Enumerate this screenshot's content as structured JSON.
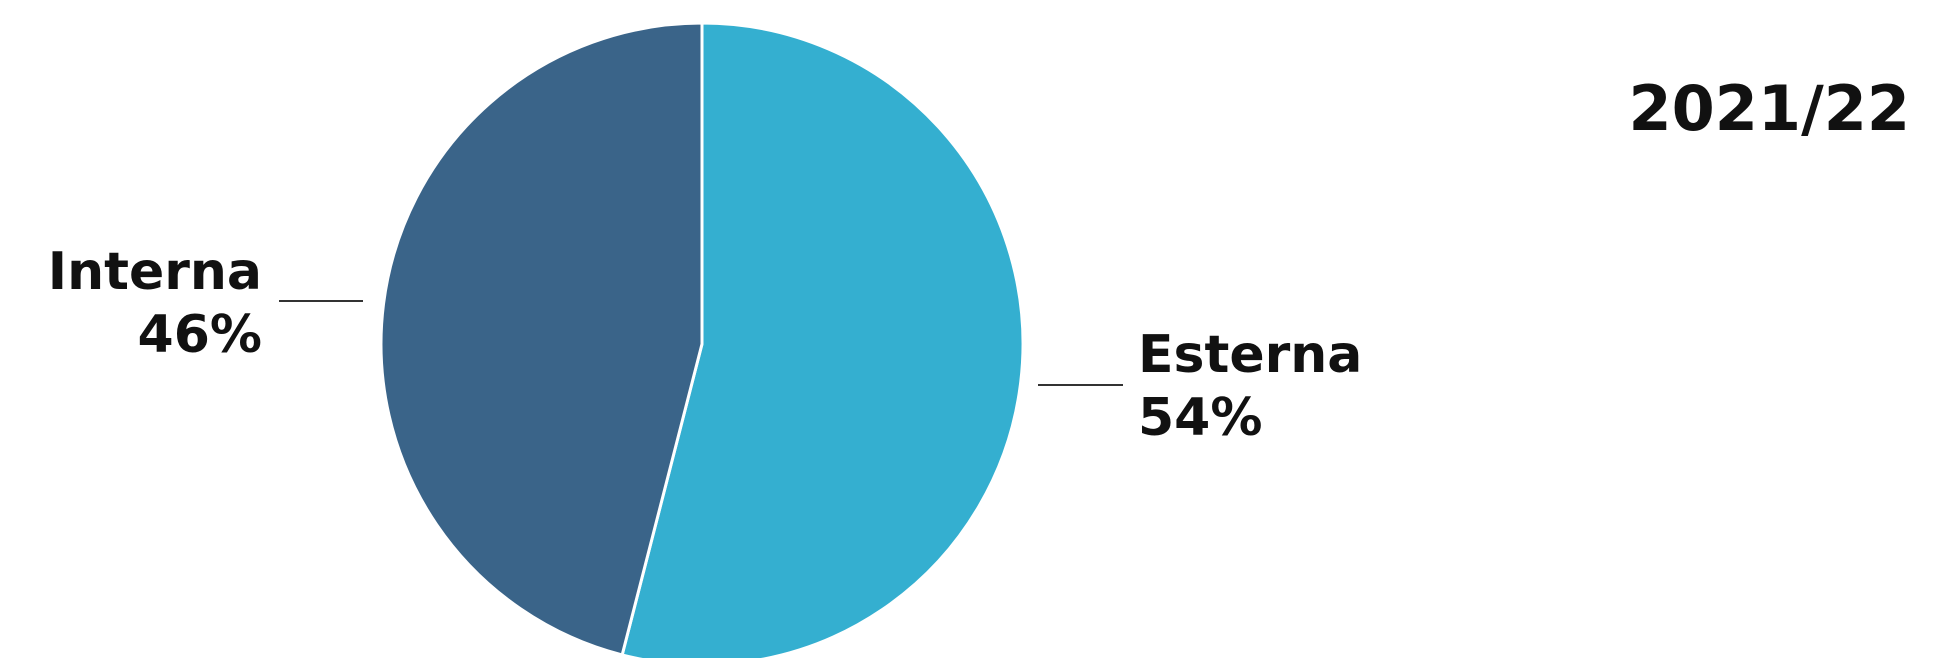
{
  "chart_data": {
    "type": "pie",
    "title": "2021/22",
    "slices": [
      {
        "label": "Esterna",
        "value": 54,
        "value_label": "54%",
        "color": "#34afd0"
      },
      {
        "label": "Interna",
        "value": 46,
        "value_label": "46%",
        "color": "#3a6489"
      }
    ],
    "start_angle_deg": 0,
    "direction": "clockwise",
    "legend": "none"
  }
}
